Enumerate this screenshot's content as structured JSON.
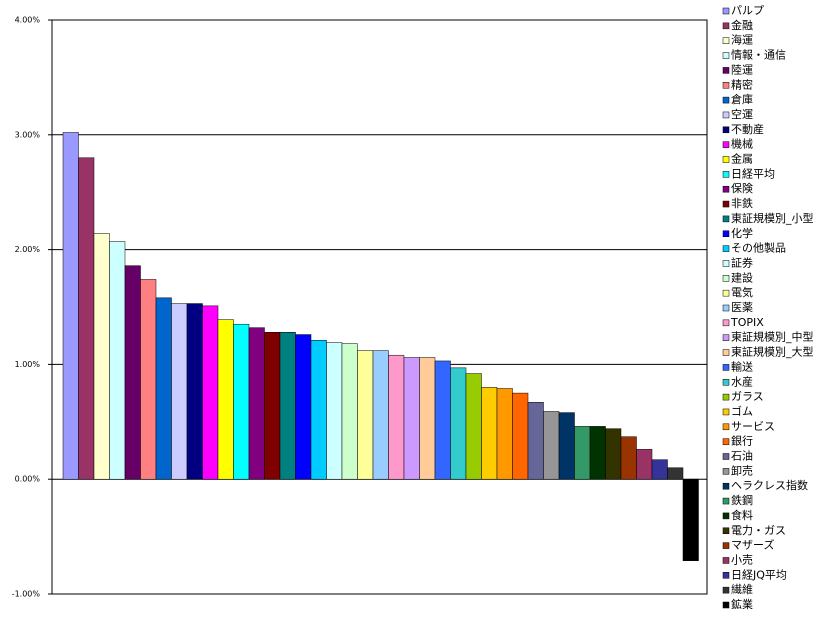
{
  "chart_data": {
    "type": "bar",
    "categories": [
      "パルプ",
      "金融",
      "海運",
      "情報・通信",
      "陸運",
      "精密",
      "倉庫",
      "空運",
      "不動産",
      "機械",
      "金属",
      "日経平均",
      "保険",
      "非鉄",
      "東証規模別_小型",
      "化学",
      "その他製品",
      "証券",
      "建設",
      "電気",
      "医薬",
      "TOPIX",
      "東証規模別_中型",
      "東証規模別_大型",
      "輸送",
      "水産",
      "ガラス",
      "ゴム",
      "サービス",
      "銀行",
      "石油",
      "卸売",
      "ヘラクレス指数",
      "鉄鋼",
      "食料",
      "電力・ガス",
      "マザーズ",
      "小売",
      "日経JQ平均",
      "繊維",
      "鉱業"
    ],
    "values": [
      3.02,
      2.8,
      2.14,
      2.07,
      1.86,
      1.74,
      1.58,
      1.53,
      1.53,
      1.51,
      1.39,
      1.35,
      1.32,
      1.28,
      1.28,
      1.26,
      1.21,
      1.19,
      1.18,
      1.12,
      1.12,
      1.08,
      1.06,
      1.06,
      1.03,
      0.97,
      0.92,
      0.8,
      0.79,
      0.75,
      0.67,
      0.59,
      0.58,
      0.46,
      0.46,
      0.44,
      0.37,
      0.26,
      0.17,
      0.1,
      -0.71
    ],
    "colors": [
      "#9999ff",
      "#993366",
      "#ffffcc",
      "#ccffff",
      "#660066",
      "#ff8080",
      "#0066cc",
      "#ccccff",
      "#000080",
      "#ff00ff",
      "#ffff00",
      "#00ffff",
      "#800080",
      "#800000",
      "#008080",
      "#0000ff",
      "#00ccff",
      "#ccffff",
      "#ccffcc",
      "#ffff99",
      "#99ccff",
      "#ff99cc",
      "#cc99ff",
      "#ffcc99",
      "#3366ff",
      "#33cccc",
      "#99cc00",
      "#ffcc00",
      "#ff9900",
      "#ff6600",
      "#666699",
      "#969696",
      "#003366",
      "#339966",
      "#003300",
      "#333300",
      "#993300",
      "#993366",
      "#333399",
      "#333333",
      "#000000"
    ],
    "ylim": [
      -1,
      4
    ],
    "yticks": [
      {
        "value": -1,
        "label": "-1.00%"
      },
      {
        "value": 0,
        "label": "0.00%"
      },
      {
        "value": 1,
        "label": "1.00%"
      },
      {
        "value": 2,
        "label": "2.00%"
      },
      {
        "value": 3,
        "label": "3.00%"
      },
      {
        "value": 4,
        "label": "4.00%"
      }
    ],
    "grid": true
  }
}
